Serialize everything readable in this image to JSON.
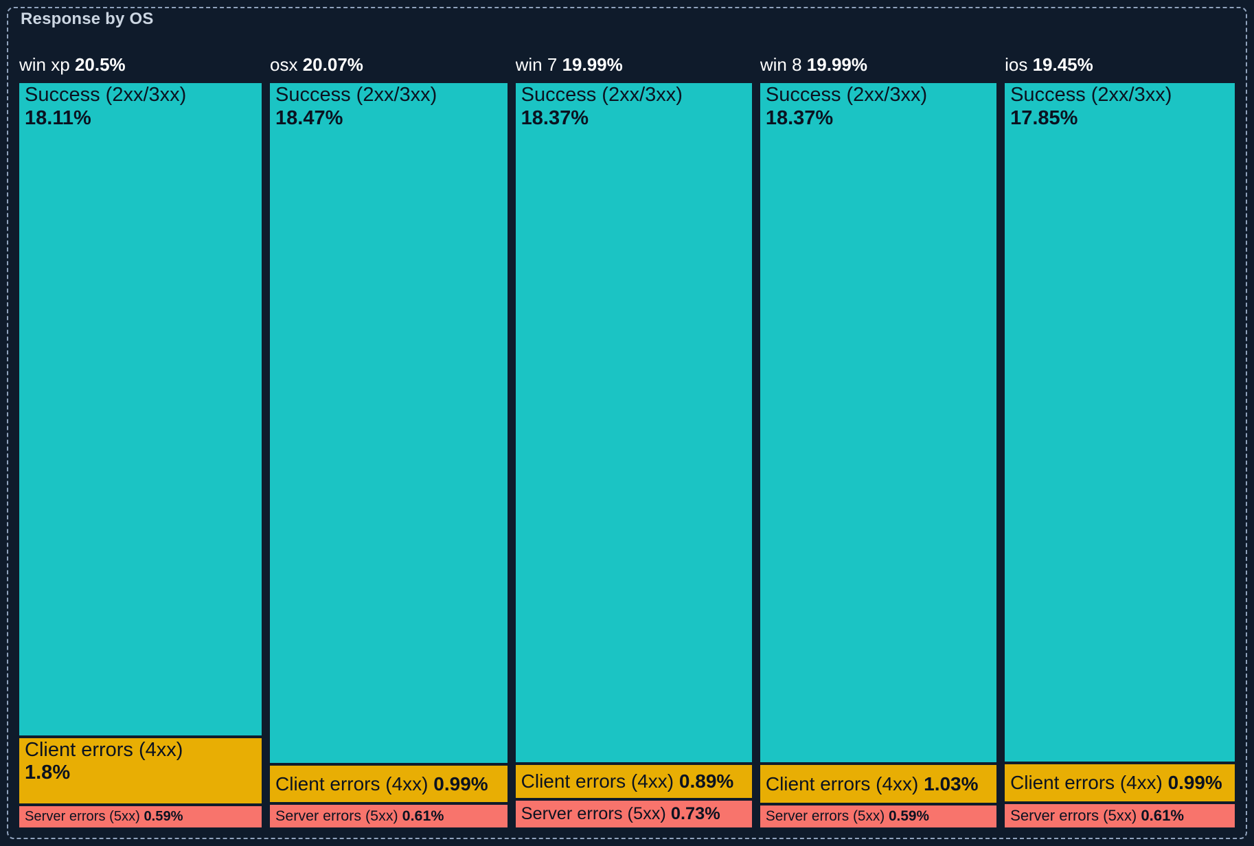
{
  "panel": {
    "title": "Response by OS"
  },
  "colors": {
    "background": "#0f1b2b",
    "panel_border": "#91a3bd",
    "title_text": "#ccd6e2",
    "header_text": "#ffffff",
    "segment_text": "#0b1220",
    "success": "#1bc4c4",
    "client_errors": "#e8ae04",
    "server_errors": "#f8746c"
  },
  "chart_data": {
    "type": "treemap",
    "title": "Response by OS",
    "orientation": "columns",
    "legend": false,
    "units": "%",
    "groups": [
      {
        "label": "win xp",
        "value": 20.5,
        "display": "20.5%",
        "segments": [
          {
            "key": "success",
            "name": "Success (2xx/3xx)",
            "value": 18.11,
            "display": "18.11%"
          },
          {
            "key": "client_errors",
            "name": "Client errors (4xx)",
            "value": 1.8,
            "display": "1.8%"
          },
          {
            "key": "server_errors",
            "name": "Server errors (5xx)",
            "value": 0.59,
            "display": "0.59%"
          }
        ]
      },
      {
        "label": "osx",
        "value": 20.07,
        "display": "20.07%",
        "segments": [
          {
            "key": "success",
            "name": "Success (2xx/3xx)",
            "value": 18.47,
            "display": "18.47%"
          },
          {
            "key": "client_errors",
            "name": "Client errors (4xx)",
            "value": 0.99,
            "display": "0.99%"
          },
          {
            "key": "server_errors",
            "name": "Server errors (5xx)",
            "value": 0.61,
            "display": "0.61%"
          }
        ]
      },
      {
        "label": "win 7",
        "value": 19.99,
        "display": "19.99%",
        "segments": [
          {
            "key": "success",
            "name": "Success (2xx/3xx)",
            "value": 18.37,
            "display": "18.37%"
          },
          {
            "key": "client_errors",
            "name": "Client errors (4xx)",
            "value": 0.89,
            "display": "0.89%"
          },
          {
            "key": "server_errors",
            "name": "Server errors (5xx)",
            "value": 0.73,
            "display": "0.73%"
          }
        ]
      },
      {
        "label": "win 8",
        "value": 19.99,
        "display": "19.99%",
        "segments": [
          {
            "key": "success",
            "name": "Success (2xx/3xx)",
            "value": 18.37,
            "display": "18.37%"
          },
          {
            "key": "client_errors",
            "name": "Client errors (4xx)",
            "value": 1.03,
            "display": "1.03%"
          },
          {
            "key": "server_errors",
            "name": "Server errors (5xx)",
            "value": 0.59,
            "display": "0.59%"
          }
        ]
      },
      {
        "label": "ios",
        "value": 19.45,
        "display": "19.45%",
        "segments": [
          {
            "key": "success",
            "name": "Success (2xx/3xx)",
            "value": 17.85,
            "display": "17.85%"
          },
          {
            "key": "client_errors",
            "name": "Client errors (4xx)",
            "value": 0.99,
            "display": "0.99%"
          },
          {
            "key": "server_errors",
            "name": "Server errors (5xx)",
            "value": 0.61,
            "display": "0.61%"
          }
        ]
      }
    ]
  }
}
